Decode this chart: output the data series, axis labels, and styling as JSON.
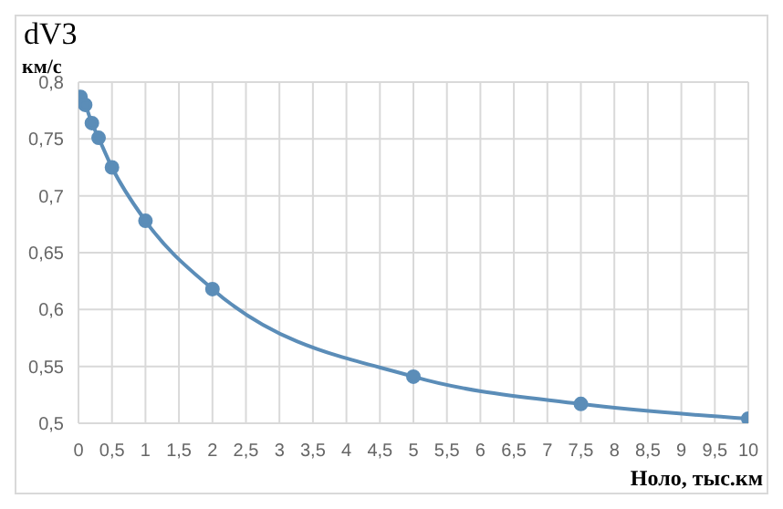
{
  "chart_data": {
    "type": "line",
    "title": "dV3",
    "ylabel": "км/с",
    "xlabel": "Ноло, тыс.км",
    "x": [
      0.03,
      0.1,
      0.2,
      0.3,
      0.5,
      1,
      2,
      5,
      7.5,
      10
    ],
    "series": [
      {
        "color": "#5b8db8",
        "values": [
          0.787,
          0.78,
          0.764,
          0.751,
          0.725,
          0.678,
          0.618,
          0.541,
          0.517,
          0.504
        ]
      }
    ],
    "xlim": [
      0,
      10
    ],
    "xticks": [
      0,
      {
        "value": 0.5,
        "label": "0,5"
      },
      1,
      {
        "value": 1.5,
        "label": "1,5"
      },
      2,
      {
        "value": 2.5,
        "label": "2,5"
      },
      3,
      {
        "value": 3.5,
        "label": "3,5"
      },
      4,
      {
        "value": 4.5,
        "label": "4,5"
      },
      5,
      {
        "value": 5.5,
        "label": "5,5"
      },
      6,
      {
        "value": 6.5,
        "label": "6,5"
      },
      7,
      {
        "value": 7.5,
        "label": "7,5"
      },
      8,
      {
        "value": 8.5,
        "label": "8,5"
      },
      9,
      {
        "value": 9.5,
        "label": "9,5"
      },
      10
    ],
    "ylim": [
      0.5,
      0.8
    ],
    "yticks": [
      {
        "value": 0.5,
        "label": "0,5"
      },
      {
        "value": 0.55,
        "label": "0,55"
      },
      {
        "value": 0.6,
        "label": "0,6"
      },
      {
        "value": 0.65,
        "label": "0,65"
      },
      {
        "value": 0.7,
        "label": "0,7"
      },
      {
        "value": 0.75,
        "label": "0,75"
      },
      {
        "value": 0.8,
        "label": "0,8"
      }
    ],
    "grid": true,
    "marker": "circle",
    "line_style": "solid"
  }
}
